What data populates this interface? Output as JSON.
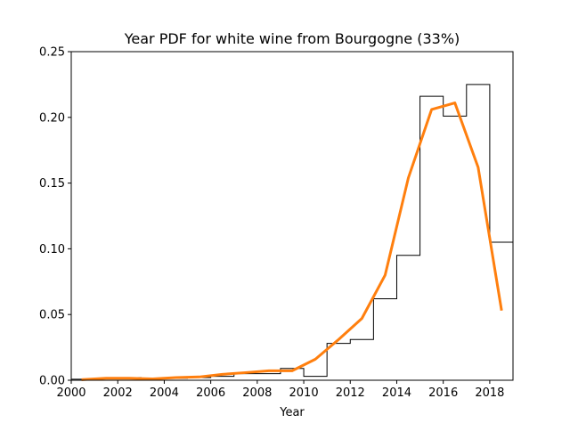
{
  "chart_data": {
    "type": "line",
    "title": "Year PDF for white wine from Bourgogne (33%)",
    "xlabel": "Year",
    "ylabel": "",
    "xlim": [
      2000,
      2019
    ],
    "ylim": [
      0,
      0.25
    ],
    "x_ticks": [
      "2000",
      "2002",
      "2004",
      "2006",
      "2008",
      "2010",
      "2012",
      "2014",
      "2016",
      "2018"
    ],
    "y_ticks": [
      "0.00",
      "0.05",
      "0.10",
      "0.15",
      "0.20",
      "0.25"
    ],
    "grid": false,
    "legend": "none",
    "series": [
      {
        "kind": "histogram-step",
        "color": "#000000",
        "bin_edges": [
          2000,
          2001,
          2002,
          2003,
          2004,
          2005,
          2006,
          2007,
          2008,
          2009,
          2010,
          2011,
          2012,
          2013,
          2014,
          2015,
          2016,
          2017,
          2018,
          2019
        ],
        "values": [
          0.0008,
          0.0015,
          0.002,
          0.001,
          0.0015,
          0.002,
          0.003,
          0.005,
          0.005,
          0.009,
          0.003,
          0.028,
          0.031,
          0.062,
          0.095,
          0.216,
          0.201,
          0.225,
          0.105
        ]
      },
      {
        "kind": "smooth-line",
        "color": "#ff7f0e",
        "x": [
          2000.5,
          2001.5,
          2002.5,
          2003.5,
          2004.5,
          2005.5,
          2006.5,
          2007.5,
          2008.5,
          2009.5,
          2010.5,
          2011.5,
          2012.5,
          2013.5,
          2014.5,
          2015.5,
          2016.5,
          2017.5,
          2018.5
        ],
        "y": [
          0.0005,
          0.0015,
          0.0015,
          0.001,
          0.002,
          0.0025,
          0.0045,
          0.0058,
          0.0072,
          0.0072,
          0.016,
          0.031,
          0.047,
          0.08,
          0.154,
          0.206,
          0.211,
          0.162,
          0.054
        ]
      }
    ]
  }
}
